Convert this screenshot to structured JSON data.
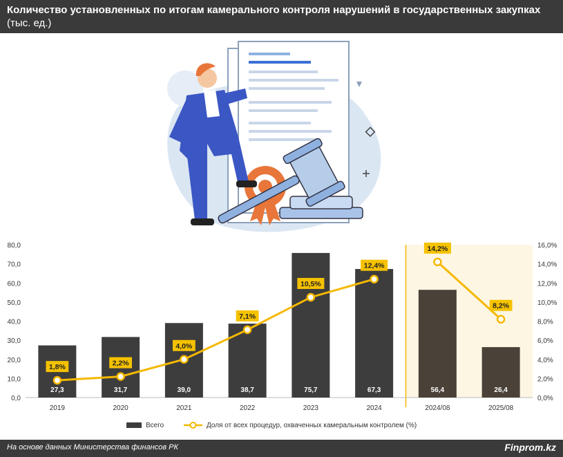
{
  "header": {
    "title": "Количество установленных по итогам камерального контроля нарушений в государственных закупках",
    "unit": "(тыс. ед.)"
  },
  "footer": {
    "source": "На основе данных Министерства финансов РК",
    "brand": "Finprom.kz"
  },
  "colors": {
    "bar": "#3d3d3d",
    "bar_highlight": "#4a4238",
    "line": "#f5b800",
    "label_bg": "#f5c200",
    "highlight_bg": "#fdf6e3",
    "divider": "#f5b800"
  },
  "chart_data": {
    "type": "bar",
    "categories": [
      "2019",
      "2020",
      "2021",
      "2022",
      "2023",
      "2024",
      "2024/08",
      "2025/08"
    ],
    "series": [
      {
        "name": "Всего",
        "type": "bar",
        "axis": "left",
        "values": [
          27.3,
          31.7,
          39.0,
          38.7,
          75.7,
          67.3,
          56.4,
          26.4
        ],
        "labels": [
          "27,3",
          "31,7",
          "39,0",
          "38,7",
          "75,7",
          "67,3",
          "56,4",
          "26,4"
        ]
      },
      {
        "name": "Доля от всех процедур, охваченных камеральным контролем (%)",
        "type": "line",
        "axis": "right",
        "segments": [
          [
            0,
            5
          ],
          [
            6,
            7
          ]
        ],
        "values": [
          1.8,
          2.2,
          4.0,
          7.1,
          10.5,
          12.4,
          14.2,
          8.2
        ],
        "labels": [
          "1,8%",
          "2,2%",
          "4,0%",
          "7,1%",
          "10,5%",
          "12,4%",
          "14,2%",
          "8,2%"
        ]
      }
    ],
    "y_left": {
      "range": [
        0,
        80
      ],
      "ticks": [
        "0,0",
        "10,0",
        "20,0",
        "30,0",
        "40,0",
        "50,0",
        "60,0",
        "70,0",
        "80,0"
      ]
    },
    "y_right": {
      "range": [
        0,
        16
      ],
      "ticks": [
        "0,0%",
        "2,0%",
        "4,0%",
        "6,0%",
        "8,0%",
        "10,0%",
        "12,0%",
        "14,0%",
        "16,0%"
      ]
    },
    "highlight_categories": [
      "2024/08",
      "2025/08"
    ],
    "grid": false,
    "legend": "bottom-center"
  }
}
